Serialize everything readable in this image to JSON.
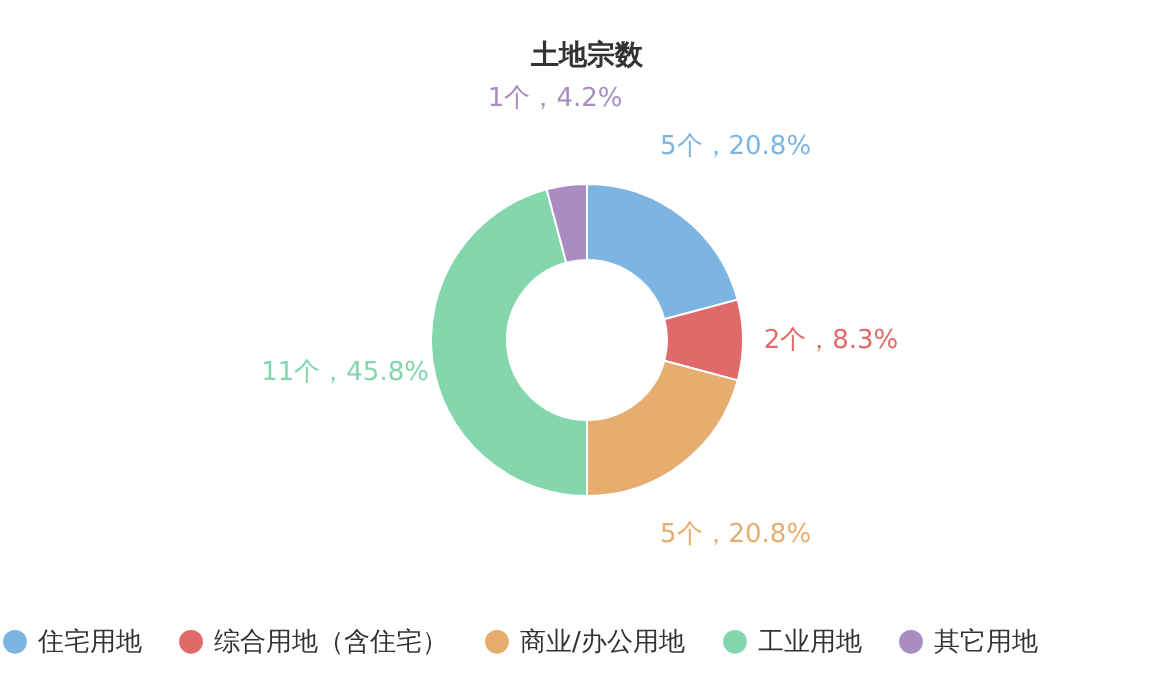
{
  "chart_data": {
    "type": "donut",
    "title": "土地宗数",
    "categories": [
      "住宅用地",
      "综合用地（含住宅）",
      "商业/办公用地",
      "工业用地",
      "其它用地"
    ],
    "values": [
      5,
      2,
      5,
      11,
      1
    ],
    "colors": [
      "#7cb5e2",
      "#e06a6a",
      "#e6ad6f",
      "#84d7ad",
      "#a98cc2"
    ],
    "value_labels": [
      "5个，20.8%",
      "2个，8.3%",
      "5个，20.8%",
      "11个，45.8%",
      "1个，4.2%"
    ],
    "legend": "bottom"
  }
}
